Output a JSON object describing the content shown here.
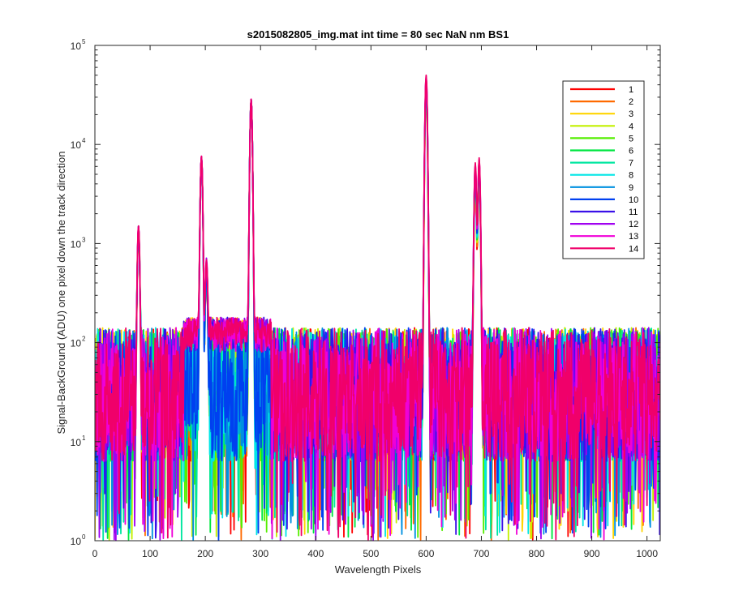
{
  "chart_data": {
    "type": "line",
    "title": "s2015082805_img.mat int time = 80 sec  NaN nm BS1",
    "xlabel": "Wavelength Pixels",
    "ylabel": "Signal-BackGround (ADU) one pixel down the track direction",
    "xlim": [
      0,
      1024
    ],
    "ylim": [
      1,
      100000
    ],
    "yscale": "log",
    "xticks": [
      "0",
      "100",
      "200",
      "300",
      "400",
      "500",
      "600",
      "700",
      "800",
      "900",
      "1000"
    ],
    "yticks": [
      {
        "base": "10",
        "exp": "0",
        "value": 1
      },
      {
        "base": "10",
        "exp": "1",
        "value": 10
      },
      {
        "base": "10",
        "exp": "2",
        "value": 100
      },
      {
        "base": "10",
        "exp": "3",
        "value": 1000
      },
      {
        "base": "10",
        "exp": "4",
        "value": 10000
      },
      {
        "base": "10",
        "exp": "5",
        "value": 100000
      }
    ],
    "grid": false,
    "legend_position": "top-right",
    "noise_floor": {
      "typical_min": 1,
      "typical_max": 130
    },
    "peaks": [
      {
        "x": 79,
        "y_max": 1500,
        "y_min": 1250
      },
      {
        "x": 193,
        "y_max": 7500,
        "y_min": 7300
      },
      {
        "x": 202,
        "y_max": 550,
        "y_min": 500
      },
      {
        "x": 283,
        "y_max": 28500,
        "y_min": 28000
      },
      {
        "x": 600,
        "y_max": 50000,
        "y_min": 33000
      },
      {
        "x": 689,
        "y_max": 6500,
        "y_min": 3800
      },
      {
        "x": 696,
        "y_max": 7200,
        "y_min": 4300
      }
    ],
    "series": [
      {
        "name": "1",
        "color": "#ff0000"
      },
      {
        "name": "2",
        "color": "#ff6a00"
      },
      {
        "name": "3",
        "color": "#ffd500"
      },
      {
        "name": "4",
        "color": "#c3f000"
      },
      {
        "name": "5",
        "color": "#55ee00"
      },
      {
        "name": "6",
        "color": "#00e640"
      },
      {
        "name": "7",
        "color": "#00e6a0"
      },
      {
        "name": "8",
        "color": "#00e6e6"
      },
      {
        "name": "9",
        "color": "#0090e0"
      },
      {
        "name": "10",
        "color": "#0040f0"
      },
      {
        "name": "11",
        "color": "#3a10e8"
      },
      {
        "name": "12",
        "color": "#a000f0"
      },
      {
        "name": "13",
        "color": "#f000d8"
      },
      {
        "name": "14",
        "color": "#f0006a"
      }
    ]
  }
}
